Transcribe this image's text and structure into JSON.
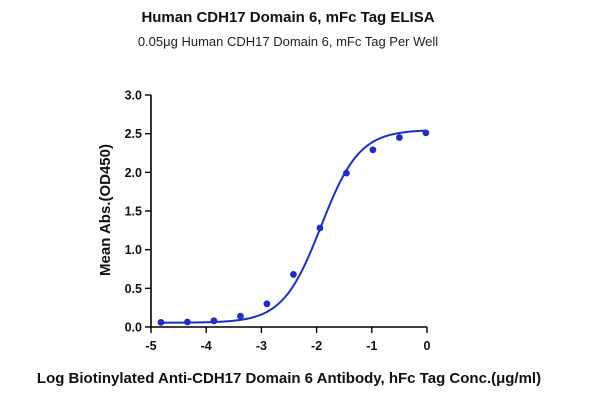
{
  "chart_data": {
    "type": "scatter",
    "title": "Human CDH17 Domain 6, mFc Tag ELISA",
    "subtitle": "0.05μg Human CDH17 Domain 6, mFc Tag Per Well",
    "xlabel": "Log Biotinylated Anti-CDH17 Domain 6 Antibody, hFc Tag Conc.(μg/ml)",
    "ylabel": "Mean Abs.(OD450)",
    "xlim": [
      -5,
      0
    ],
    "ylim": [
      0,
      3.0
    ],
    "x_ticks": [
      "-5",
      "-4",
      "-3",
      "-2",
      "-1",
      "0"
    ],
    "y_ticks": [
      "0.0",
      "0.5",
      "1.0",
      "1.5",
      "2.0",
      "2.5",
      "3.0"
    ],
    "grid": false,
    "series": [
      {
        "points": [
          {
            "x": -4.82,
            "y": 0.06
          },
          {
            "x": -4.34,
            "y": 0.065
          },
          {
            "x": -3.86,
            "y": 0.08
          },
          {
            "x": -3.38,
            "y": 0.14
          },
          {
            "x": -2.9,
            "y": 0.3
          },
          {
            "x": -2.42,
            "y": 0.68
          },
          {
            "x": -1.94,
            "y": 1.28
          },
          {
            "x": -1.46,
            "y": 1.99
          },
          {
            "x": -0.98,
            "y": 2.29
          },
          {
            "x": -0.5,
            "y": 2.45
          },
          {
            "x": -0.02,
            "y": 2.51
          }
        ],
        "fit": {
          "bottom": 0.055,
          "top": 2.55,
          "logEC50": -1.92,
          "hill": 1.25
        }
      }
    ],
    "colors": {
      "series": "#1f2fbf",
      "axis": "#000000"
    }
  }
}
